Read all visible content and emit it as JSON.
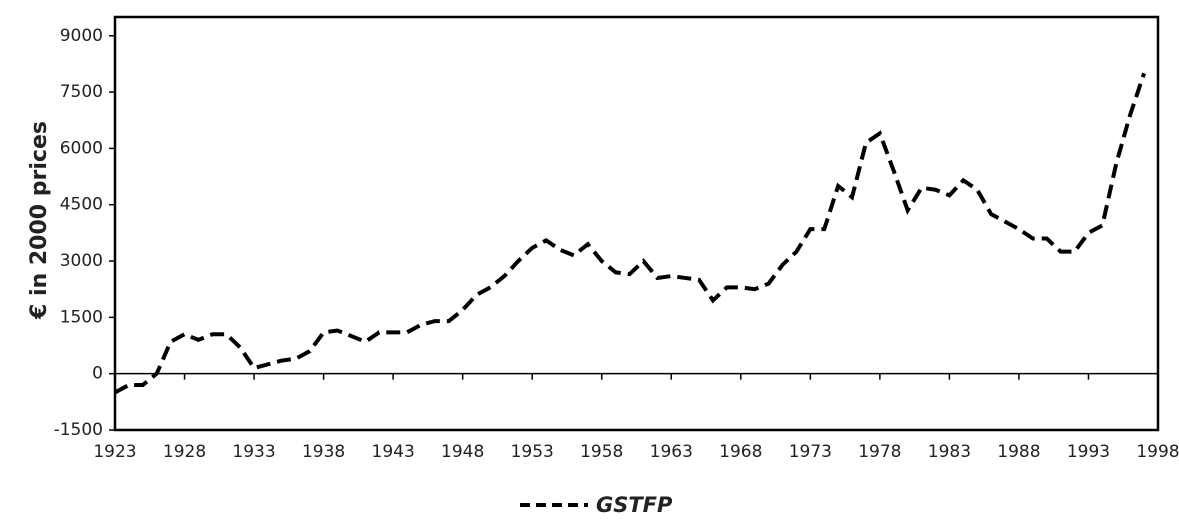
{
  "chart_data": {
    "type": "line",
    "y_label": "€ in 2000 prices",
    "x": [
      1923,
      1924,
      1925,
      1926,
      1927,
      1928,
      1929,
      1930,
      1931,
      1932,
      1933,
      1934,
      1935,
      1936,
      1937,
      1938,
      1939,
      1940,
      1941,
      1942,
      1943,
      1944,
      1945,
      1946,
      1947,
      1948,
      1949,
      1950,
      1951,
      1952,
      1953,
      1954,
      1955,
      1956,
      1957,
      1958,
      1959,
      1960,
      1961,
      1962,
      1963,
      1964,
      1965,
      1966,
      1967,
      1968,
      1969,
      1970,
      1971,
      1972,
      1973,
      1974,
      1975,
      1976,
      1977,
      1978,
      1979,
      1980,
      1981,
      1982,
      1983,
      1984,
      1985,
      1986,
      1987,
      1988,
      1989,
      1990,
      1991,
      1992,
      1993,
      1994,
      1995,
      1996,
      1997
    ],
    "series": [
      {
        "name": "GSTFP",
        "color": "#000000",
        "values": [
          -500,
          -300,
          -300,
          0,
          850,
          1050,
          900,
          1050,
          1050,
          700,
          150,
          250,
          350,
          400,
          600,
          1100,
          1150,
          1000,
          850,
          1100,
          1100,
          1100,
          1300,
          1400,
          1400,
          1700,
          2100,
          2300,
          2600,
          3000,
          3350,
          3550,
          3300,
          3150,
          3450,
          3000,
          2700,
          2650,
          3000,
          2550,
          2600,
          2550,
          2500,
          1950,
          2300,
          2300,
          2250,
          2400,
          2900,
          3250,
          3850,
          3850,
          5000,
          4700,
          6150,
          6400,
          5400,
          4350,
          4950,
          4900,
          4750,
          5150,
          4900,
          4250,
          4050,
          3850,
          3600,
          3600,
          3250,
          3250,
          3750,
          3950,
          5600,
          6900,
          8000
        ]
      }
    ],
    "xlim": [
      1923,
      1998
    ],
    "xticks": [
      1923,
      1928,
      1933,
      1938,
      1943,
      1948,
      1953,
      1958,
      1963,
      1968,
      1973,
      1978,
      1983,
      1988,
      1993,
      1998
    ],
    "ylim": [
      -1500,
      9500
    ],
    "yticks": [
      -1500,
      0,
      1500,
      3000,
      4500,
      6000,
      7500,
      9000
    ],
    "legend": "bottom"
  }
}
